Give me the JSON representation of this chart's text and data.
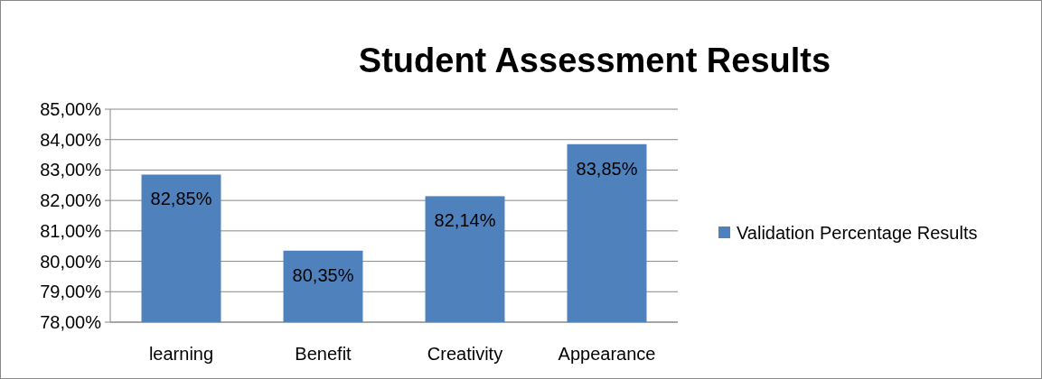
{
  "chart_data": {
    "type": "bar",
    "title": "Student Assessment Results",
    "categories": [
      "learning",
      "Benefit",
      "Creativity",
      "Appearance"
    ],
    "series": [
      {
        "name": "Validation Percentage Results",
        "color": "#4f81bd",
        "values": [
          82.85,
          80.35,
          82.14,
          83.85
        ],
        "value_labels": [
          "82,85%",
          "80,35%",
          "82,14%",
          "83,85%"
        ]
      }
    ],
    "ylim": [
      78,
      85
    ],
    "yticks": [
      {
        "value": 78,
        "label": "78,00%"
      },
      {
        "value": 79,
        "label": "79,00%"
      },
      {
        "value": 80,
        "label": "80,00%"
      },
      {
        "value": 81,
        "label": "81,00%"
      },
      {
        "value": 82,
        "label": "82,00%"
      },
      {
        "value": 83,
        "label": "83,00%"
      },
      {
        "value": 84,
        "label": "84,00%"
      },
      {
        "value": 85,
        "label": "85,00%"
      }
    ],
    "grid": "y",
    "legend": "right"
  }
}
